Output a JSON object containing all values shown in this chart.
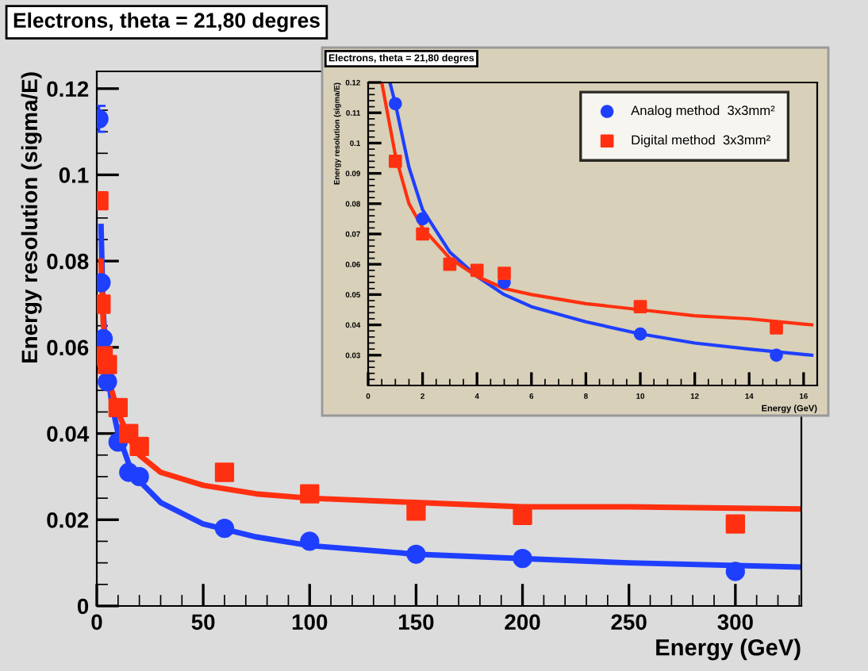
{
  "chart_data": [
    {
      "type": "scatter",
      "title": "Electrons, theta = 21,80 degres",
      "xlabel": "Energy (GeV)",
      "ylabel": "Energy resolution (sigma/E)",
      "xlim": [
        0,
        331
      ],
      "ylim": [
        0,
        0.124
      ],
      "xticks": [
        0,
        50,
        100,
        150,
        200,
        250,
        300
      ],
      "yticks": [
        0,
        0.02,
        0.04,
        0.06,
        0.08,
        0.1,
        0.12
      ],
      "grid": false,
      "legend": false,
      "series": [
        {
          "type": "line",
          "color": "#1f3fff",
          "x": [
            2,
            3,
            5,
            7,
            10,
            15,
            20,
            30,
            50,
            75,
            100,
            150,
            200,
            250,
            331
          ],
          "values": [
            0.088,
            0.068,
            0.055,
            0.047,
            0.04,
            0.033,
            0.029,
            0.024,
            0.019,
            0.016,
            0.014,
            0.012,
            0.011,
            0.01,
            0.009
          ]
        },
        {
          "type": "line",
          "color": "#ff3010",
          "x": [
            2,
            3,
            5,
            7,
            10,
            15,
            20,
            30,
            50,
            75,
            100,
            150,
            200,
            250,
            331
          ],
          "values": [
            0.08,
            0.066,
            0.057,
            0.05,
            0.045,
            0.039,
            0.035,
            0.031,
            0.028,
            0.026,
            0.025,
            0.024,
            0.023,
            0.023,
            0.0225
          ]
        },
        {
          "marker": "circle",
          "color": "#1f3fff",
          "x": [
            1,
            2,
            3,
            5,
            10,
            15,
            20,
            60,
            100,
            150,
            200,
            300
          ],
          "values": [
            0.113,
            0.075,
            0.062,
            0.052,
            0.038,
            0.031,
            0.03,
            0.018,
            0.015,
            0.012,
            0.011,
            0.008
          ],
          "errors": [
            0.003,
            null,
            null,
            null,
            null,
            null,
            null,
            null,
            null,
            null,
            null,
            null
          ]
        },
        {
          "marker": "square",
          "color": "#ff3010",
          "x": [
            1,
            2,
            3,
            5,
            10,
            15,
            20,
            60,
            100,
            150,
            200,
            300
          ],
          "values": [
            0.094,
            0.07,
            0.058,
            0.056,
            0.046,
            0.04,
            0.037,
            0.031,
            0.026,
            0.022,
            0.021,
            0.019
          ]
        }
      ]
    },
    {
      "type": "scatter",
      "title": "Electrons, theta = 21,80 degres",
      "xlabel": "Energy (GeV)",
      "ylabel": "Energy resolution (sigma/E)",
      "xlim": [
        0,
        16.5
      ],
      "ylim": [
        0.02,
        0.12
      ],
      "xticks": [
        0,
        2,
        4,
        6,
        8,
        10,
        12,
        14,
        16
      ],
      "yticks": [
        0.03,
        0.04,
        0.05,
        0.06,
        0.07,
        0.08,
        0.09,
        0.1,
        0.11,
        0.12
      ],
      "grid": false,
      "legend": "top right",
      "series": [
        {
          "type": "line",
          "color": "#1f3fff",
          "x": [
            0.8,
            1,
            1.5,
            2,
            3,
            4,
            5,
            6,
            8,
            10,
            12,
            14,
            16.3
          ],
          "values": [
            0.12,
            0.113,
            0.092,
            0.078,
            0.064,
            0.056,
            0.05,
            0.046,
            0.041,
            0.037,
            0.034,
            0.032,
            0.03
          ]
        },
        {
          "type": "line",
          "color": "#ff3010",
          "x": [
            0.5,
            1,
            1.5,
            2,
            3,
            4,
            5,
            6,
            8,
            10,
            12,
            14,
            16.3
          ],
          "values": [
            0.12,
            0.096,
            0.08,
            0.072,
            0.062,
            0.056,
            0.052,
            0.05,
            0.047,
            0.045,
            0.043,
            0.042,
            0.04
          ]
        },
        {
          "name": "Analog method  3x3mm²",
          "marker": "circle",
          "color": "#1f3fff",
          "x": [
            1,
            2,
            5,
            10,
            15
          ],
          "values": [
            0.113,
            0.075,
            0.054,
            0.037,
            0.03
          ]
        },
        {
          "name": "Digital method  3x3mm²",
          "marker": "square",
          "color": "#ff3010",
          "x": [
            1,
            2,
            3,
            4,
            5,
            10,
            15
          ],
          "values": [
            0.094,
            0.07,
            0.06,
            0.058,
            0.057,
            0.046,
            0.039
          ]
        }
      ]
    }
  ]
}
